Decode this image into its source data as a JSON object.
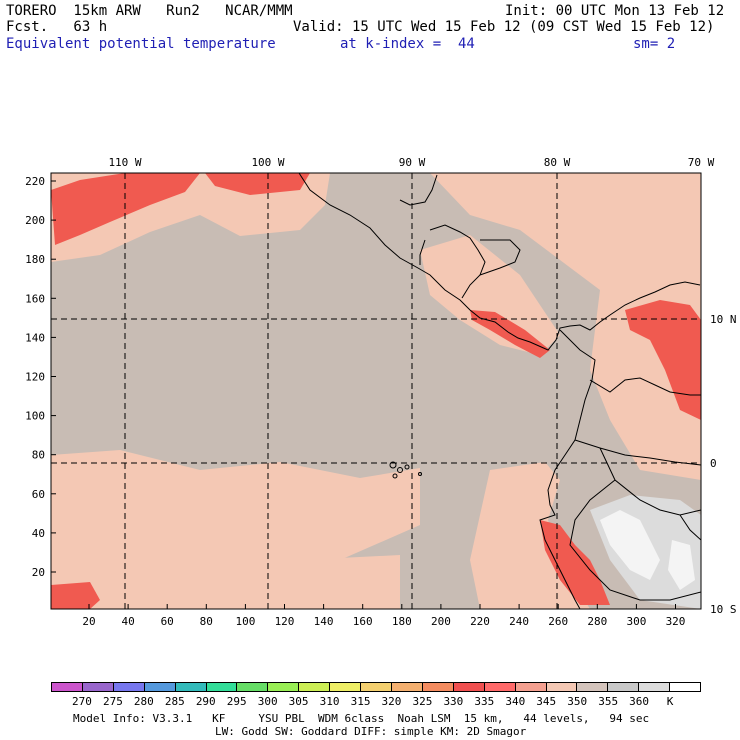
{
  "header": {
    "model": "TORERO  15km ARW   Run2   NCAR/MMM",
    "init": "Init: 00 UTC Mon 13 Feb 12",
    "fcst": "Fcst.   63 h",
    "valid": "Valid: 15 UTC Wed 15 Feb 12 (09 CST Wed 15 Feb 12)",
    "field": "Equivalent potential temperature",
    "level": "at k-index =  44",
    "smooth": "sm= 2"
  },
  "map": {
    "top_lon_labels": [
      "110 W",
      "100 W",
      "90 W",
      "80 W",
      "70 W"
    ],
    "right_lat_labels": [
      "10 N",
      "0",
      "10 S"
    ],
    "left_y_ticks": [
      "220",
      "200",
      "180",
      "160",
      "140",
      "120",
      "100",
      "80",
      "60",
      "40",
      "20"
    ],
    "bottom_x_ticks": [
      "20",
      "40",
      "60",
      "80",
      "100",
      "120",
      "140",
      "160",
      "180",
      "200",
      "220",
      "240",
      "260",
      "280",
      "300",
      "320"
    ],
    "base_color": "#c8bcb4"
  },
  "colorbar": {
    "colors": [
      "#cc55cc",
      "#9966cc",
      "#7777ee",
      "#5599dd",
      "#33bbbb",
      "#33dd99",
      "#66dd66",
      "#99ee55",
      "#ccee55",
      "#eeee66",
      "#f4d070",
      "#f4b070",
      "#f48c60",
      "#f05050",
      "#ff6a6a",
      "#f4a090",
      "#f4c8b4",
      "#d4c4bc",
      "#c8c8c8",
      "#dcdcdc",
      "#ffffff"
    ],
    "labels": [
      "270",
      "275",
      "280",
      "285",
      "290",
      "295",
      "300",
      "305",
      "310",
      "315",
      "320",
      "325",
      "330",
      "335",
      "340",
      "345",
      "350",
      "355",
      "360",
      "K"
    ]
  },
  "footer": {
    "line1": "Model Info: V3.3.1   KF     YSU PBL  WDM 6class  Noah LSM  15 km,   44 levels,   94 sec",
    "line2": "LW: Godd SW: Goddard DIFF: simple KM: 2D Smagor"
  }
}
